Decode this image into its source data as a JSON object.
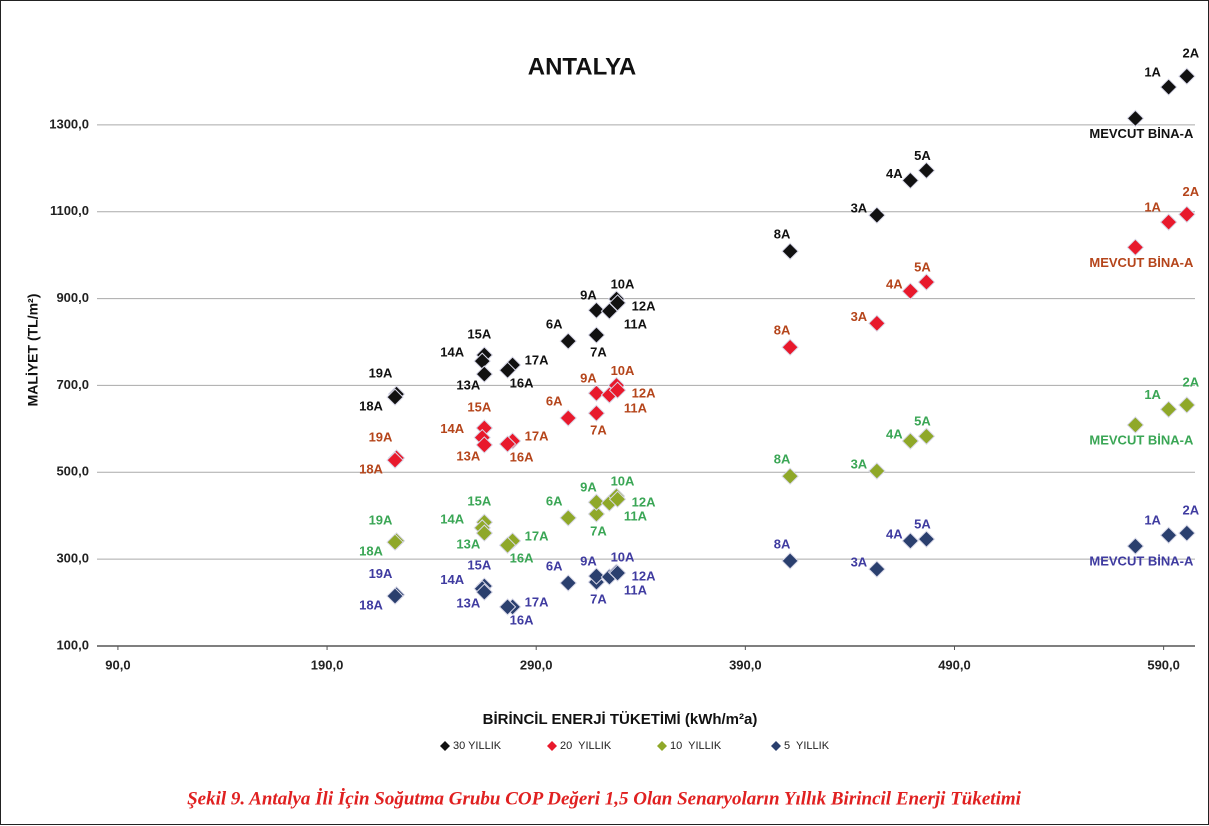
{
  "chart_data": {
    "type": "scatter",
    "title": "ANTALYA",
    "x_label": "BİRİNCİL ENERJİ TÜKETİMİ (kWh/m²a)",
    "y_label": "MALİYET (TL/m²)",
    "caption": "Şekil 9. Antalya İli İçin Soğutma Grubu COP Değeri 1,5 Olan Senaryoların Yıllık Birincil Enerji Tüketimi",
    "xlim": [
      80,
      605
    ],
    "ylim": [
      100,
      1500
    ],
    "xticks": [
      {
        "value": 90,
        "label": "90,0"
      },
      {
        "value": 190,
        "label": "190,0"
      },
      {
        "value": 290,
        "label": "290,0"
      },
      {
        "value": 390,
        "label": "390,0"
      },
      {
        "value": 490,
        "label": "490,0"
      },
      {
        "value": 590,
        "label": "590,0"
      }
    ],
    "yticks": [
      {
        "value": 100,
        "label": "100,0"
      },
      {
        "value": 300,
        "label": "300,0"
      },
      {
        "value": 500,
        "label": "500,0"
      },
      {
        "value": 700,
        "label": "700,0"
      },
      {
        "value": 900,
        "label": "900,0"
      },
      {
        "value": 1100,
        "label": "1100,0"
      },
      {
        "value": 1300,
        "label": "1300,0"
      }
    ],
    "grid": true,
    "legend": "bottom",
    "series": [
      {
        "name": "30 YILLIK",
        "color": "#111111",
        "label_color": "#111111",
        "labels": [
          "19A",
          "18A",
          "15A",
          "14A",
          "13A",
          "17A",
          "16A",
          "6A",
          "7A",
          "9A",
          "11A",
          "10A",
          "12A",
          "8A",
          "3A",
          "4A",
          "5A",
          "MEVCUT BİNA-A",
          "1A",
          "2A"
        ],
        "x": [
          223.2,
          222.5,
          265.2,
          264.2,
          265.2,
          278.7,
          276.3,
          305.3,
          318.8,
          318.8,
          325,
          328.4,
          328.9,
          411.4,
          452.9,
          468.9,
          476.6,
          576.5,
          592.4,
          601.1
        ],
        "values": [
          680,
          673,
          770,
          756,
          726,
          747,
          735,
          802,
          816,
          873,
          871,
          899,
          890,
          1009,
          1092,
          1172,
          1195,
          1315,
          1387,
          1412
        ]
      },
      {
        "name": "20  YILLIK",
        "color": "#e8192c",
        "label_color": "#b5451b",
        "labels": [
          "19A",
          "18A",
          "15A",
          "14A",
          "13A",
          "17A",
          "16A",
          "6A",
          "7A",
          "9A",
          "11A",
          "10A",
          "12A",
          "8A",
          "3A",
          "4A",
          "5A",
          "MEVCUT BİNA-A",
          "1A",
          "2A"
        ],
        "x": [
          223.2,
          222.5,
          265.2,
          264.2,
          265.2,
          278.7,
          276.3,
          305.3,
          318.8,
          318.8,
          325,
          328.4,
          328.9,
          411.4,
          452.9,
          468.9,
          476.6,
          576.5,
          592.4,
          601.1
        ],
        "values": [
          533,
          528,
          602,
          580,
          563,
          572,
          565,
          625,
          636,
          682,
          678,
          700,
          689,
          788,
          843,
          917,
          938,
          1018,
          1076,
          1094
        ]
      },
      {
        "name": "10  YILLIK",
        "color": "#8fa829",
        "label_color": "#3aa655",
        "labels": [
          "19A",
          "18A",
          "15A",
          "14A",
          "13A",
          "17A",
          "16A",
          "6A",
          "7A",
          "9A",
          "11A",
          "10A",
          "12A",
          "8A",
          "3A",
          "4A",
          "5A",
          "MEVCUT BİNA-A",
          "1A",
          "2A"
        ],
        "x": [
          223.2,
          222.5,
          265.2,
          264.2,
          265.2,
          278.7,
          276.3,
          305.3,
          318.8,
          318.8,
          325,
          328.4,
          328.9,
          411.4,
          452.9,
          468.9,
          476.6,
          576.5,
          592.4,
          601.1
        ],
        "values": [
          342,
          339,
          385,
          372,
          360,
          342,
          332,
          395,
          404,
          431,
          429,
          445,
          438,
          491,
          503,
          572,
          583,
          609,
          645,
          655
        ]
      },
      {
        "name": "5  YILLIK",
        "color": "#2a3f6e",
        "label_color": "#3f3ba0",
        "labels": [
          "19A",
          "18A",
          "15A",
          "14A",
          "13A",
          "17A",
          "16A",
          "6A",
          "7A",
          "9A",
          "11A",
          "10A",
          "12A",
          "8A",
          "3A",
          "4A",
          "5A",
          "MEVCUT BİNA-A",
          "1A",
          "2A"
        ],
        "x": [
          223.2,
          222.5,
          265.2,
          264.2,
          265.2,
          278.7,
          276.3,
          305.3,
          318.8,
          318.8,
          325,
          328.4,
          328.9,
          411.4,
          452.9,
          468.9,
          476.6,
          576.5,
          592.4,
          601.1
        ],
        "values": [
          218,
          215,
          238,
          232,
          224,
          190,
          190,
          245,
          247,
          261,
          259,
          270,
          268,
          296,
          277,
          342,
          346,
          330,
          355,
          360
        ]
      }
    ]
  }
}
